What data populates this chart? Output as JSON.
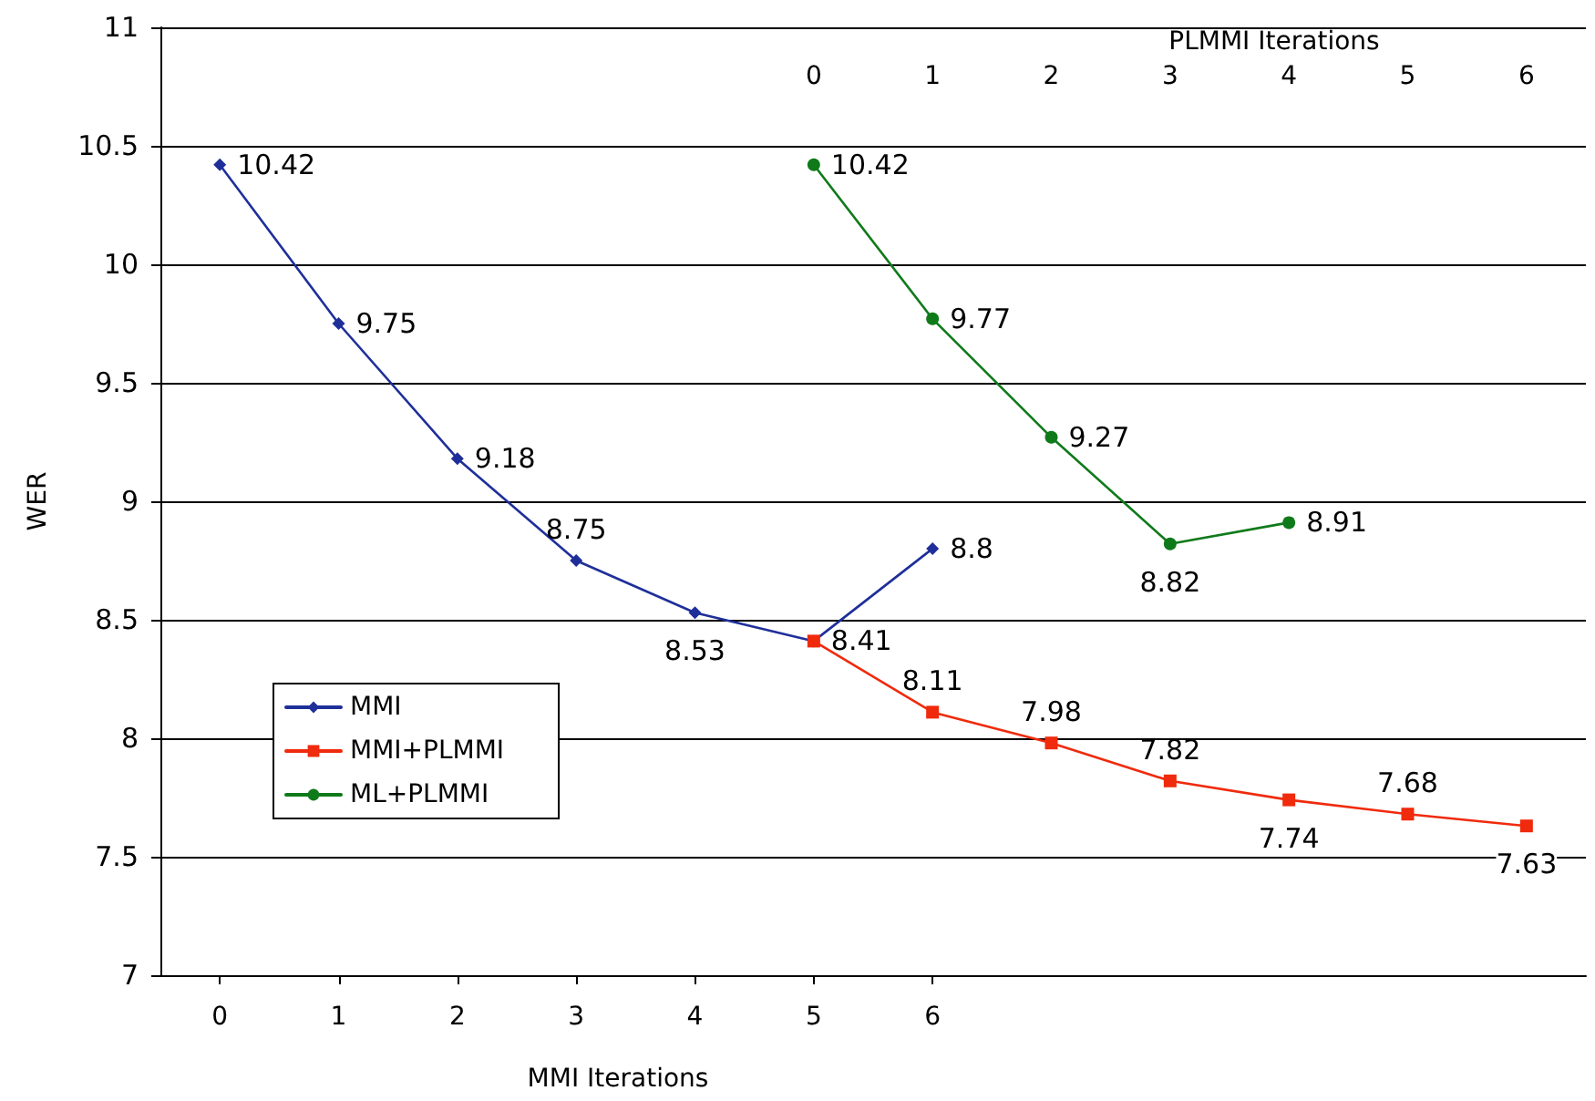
{
  "chart_data": {
    "type": "line",
    "xlabel": "MMI Iterations",
    "ylabel": "WER",
    "x2label": "PLMMI Iterations",
    "xlim": [
      -0.5,
      11.5
    ],
    "xticks": [
      0,
      1,
      2,
      3,
      4,
      5,
      6
    ],
    "x2lim": [
      -5.5,
      6.5
    ],
    "x2ticks": [
      0,
      1,
      2,
      3,
      4,
      5,
      6
    ],
    "ylim": [
      7,
      11
    ],
    "yticks": [
      7,
      7.5,
      8,
      8.5,
      9,
      9.5,
      10,
      10.5,
      11
    ],
    "grid": "y",
    "legend": "left",
    "series": [
      {
        "name": "MMI",
        "color": "#1f2f9a",
        "marker": "diamond",
        "x": [
          0,
          1,
          2,
          3,
          4,
          5,
          6
        ],
        "values": [
          10.42,
          9.75,
          9.18,
          8.75,
          8.53,
          8.41,
          8.8
        ],
        "value_labels": [
          "10.42",
          "9.75",
          "9.18",
          "8.75",
          "8.53",
          "8.41",
          "8.8"
        ]
      },
      {
        "name": "MMI+PLMMI",
        "color": "#f02a0c",
        "marker": "square",
        "axis": "x2",
        "x": [
          0,
          1,
          2,
          3,
          4,
          5,
          6
        ],
        "values": [
          8.41,
          8.11,
          7.98,
          7.82,
          7.74,
          7.68,
          7.63
        ],
        "value_labels": [
          null,
          "8.11",
          "7.98",
          "7.82",
          "7.74",
          "7.68",
          "7.63"
        ]
      },
      {
        "name": "ML+PLMMI",
        "color": "#0f7a1a",
        "marker": "circle",
        "axis": "x2",
        "x": [
          0,
          1,
          2,
          3,
          4
        ],
        "values": [
          10.42,
          9.77,
          9.27,
          8.82,
          8.91
        ],
        "value_labels": [
          "10.42",
          "9.77",
          "9.27",
          "8.82",
          "8.91"
        ]
      }
    ]
  }
}
